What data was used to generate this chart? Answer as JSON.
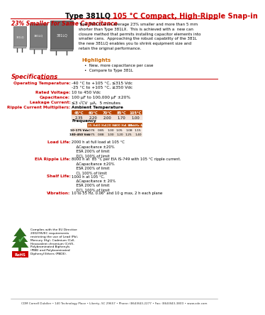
{
  "title_black": "Type 381LQ ",
  "title_red": "105 °C Compact, High-Ripple Snap-in",
  "subtitle": "23% Smaller for Same Capacitance",
  "desc": "Type 381LQ is on average 23% smaller and more than 5 mm\nshorter than Type 381LX.  This is achieved with a  new can\nclosure method that permits installing capacitor elements into\nsmaller cans.  Approaching the robust capability of the 381L\nthe new 381LQ enables you to shrink equipment size and\nretain the original performance.",
  "highlights_title": "Highlights",
  "highlights": [
    "New, more capacitance per case",
    "Compare to Type 381L"
  ],
  "specs_title": "Specifications",
  "spec_labels": [
    "Operating Temperature:",
    "Rated Voltage:",
    "Capacitance:",
    "Leakage Current:",
    "Ripple Current Multipliers:"
  ],
  "spec_values": [
    "-40 °C to +105 °C, ≤315 Vdc\n-25 °C to +105 °C, ≥350 Vdc",
    "10 to 450 Vdc",
    "100 μF to 100,000 μF ±20%",
    "≤3 √CV  μA,  5 minutes",
    "Ambient Temperature"
  ],
  "amb_temp_headers": [
    "45°C",
    "60°C",
    "70°C",
    "85°C",
    "105°C"
  ],
  "amb_temp_values": [
    "2.35",
    "2.20",
    "2.00",
    "1.70",
    "1.00"
  ],
  "freq_label": "Frequency",
  "freq_headers": [
    "25 Hz",
    "50 Hz",
    "120 Hz",
    "400 Hz",
    "1 kHz",
    "10 kHz & up"
  ],
  "freq_row1_label": "10-175 Vdc",
  "freq_row1": [
    "0.76",
    "0.85",
    "1.00",
    "1.05",
    "1.08",
    "1.15"
  ],
  "freq_row2_label": "180-450 Vdc",
  "freq_row2": [
    "0.75",
    "0.88",
    "1.00",
    "1.20",
    "1.25",
    "1.40"
  ],
  "load_life_label": "Load Life:",
  "load_life_text": "2000 h at full load at 105 °C\n    ΔCapacitance ±20%\n    ESR 200% of limit\n    DCL 100% of limit",
  "eia_label": "EIA Ripple Life:",
  "eia_text": "8000 h at  85 °C per EIA IS-749 with 105 °C ripple current.\n    ΔCapacitance ±20%\n    ESR 200% of limit\n    CL 100% of limit",
  "shelf_label": "Shelf Life:",
  "shelf_text": "1000 h at 105 °C,\n    ΔCapacitance ± 20%\n    ESR 200% of limit\n    DCL 100% of limit",
  "vib_label": "Vibration:",
  "vib_text": "10 to 55 Hz, 0.06\" and 10 g max, 2 h each plane",
  "rohs_text": "Complies with the EU Directive\n2002/95/EC requirements\nrestricting the use of Lead (Pb),\nMercury (Hg), Cadmium (Cd),\nHexavalent chromium (CrVI),\nPolybrominated Biphenyls\n(PBB) and Polybrominated\nDiphenyl Ethers (PBDE).",
  "footer": "CDM Cornell Dubilier • 140 Technology Place • Liberty, SC 29657 • Phone: (864)843-2277 • Fax: (864)843-3800 • www.cde.com",
  "red_color": "#cc0000",
  "orange_color": "#cc6600",
  "table_header_bg": "#cc3300",
  "tree_color": "#2d6e1e",
  "check_color": "#5cb85c"
}
